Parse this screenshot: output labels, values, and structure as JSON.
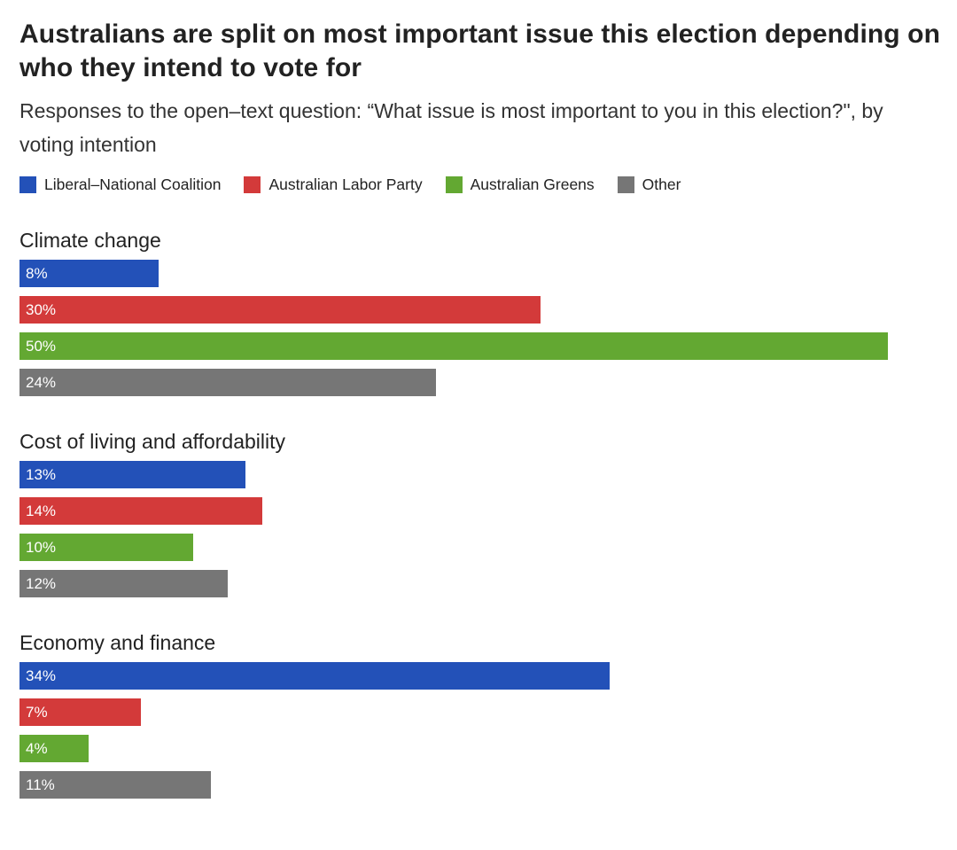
{
  "title": "Australians are split on most important issue this election depending on who they intend to vote for",
  "subtitle": "Responses to the open–text question: “What issue is most important to you in this election?\", by voting intention",
  "colors": {
    "coalition": "#2351b8",
    "labor": "#d33a3a",
    "greens": "#63a832",
    "other": "#767676"
  },
  "legend": [
    {
      "label": "Liberal–National Coalition",
      "color": "#2351b8"
    },
    {
      "label": "Australian Labor Party",
      "color": "#d33a3a"
    },
    {
      "label": "Australian Greens",
      "color": "#63a832"
    },
    {
      "label": "Other",
      "color": "#767676"
    }
  ],
  "chart_data": {
    "type": "bar",
    "orientation": "horizontal",
    "title": "Australians are split on most important issue this election depending on who they intend to vote for",
    "subtitle": "Responses to the open–text question: “What issue is most important to you in this election?\", by voting intention",
    "unit": "%",
    "xlim": [
      0,
      50
    ],
    "grid": false,
    "legend_position": "top-left",
    "series_names": [
      "Liberal–National Coalition",
      "Australian Labor Party",
      "Australian Greens",
      "Other"
    ],
    "groups": [
      {
        "category": "Climate change",
        "values": [
          {
            "series": "Liberal–National Coalition",
            "value": 8,
            "label": "8%"
          },
          {
            "series": "Australian Labor Party",
            "value": 30,
            "label": "30%"
          },
          {
            "series": "Australian Greens",
            "value": 50,
            "label": "50%"
          },
          {
            "series": "Other",
            "value": 24,
            "label": "24%"
          }
        ]
      },
      {
        "category": "Cost of living and affordability",
        "values": [
          {
            "series": "Liberal–National Coalition",
            "value": 13,
            "label": "13%"
          },
          {
            "series": "Australian Labor Party",
            "value": 14,
            "label": "14%"
          },
          {
            "series": "Australian Greens",
            "value": 10,
            "label": "10%"
          },
          {
            "series": "Other",
            "value": 12,
            "label": "12%"
          }
        ]
      },
      {
        "category": "Economy and finance",
        "values": [
          {
            "series": "Liberal–National Coalition",
            "value": 34,
            "label": "34%"
          },
          {
            "series": "Australian Labor Party",
            "value": 7,
            "label": "7%"
          },
          {
            "series": "Australian Greens",
            "value": 4,
            "label": "4%"
          },
          {
            "series": "Other",
            "value": 11,
            "label": "11%"
          }
        ]
      }
    ]
  }
}
